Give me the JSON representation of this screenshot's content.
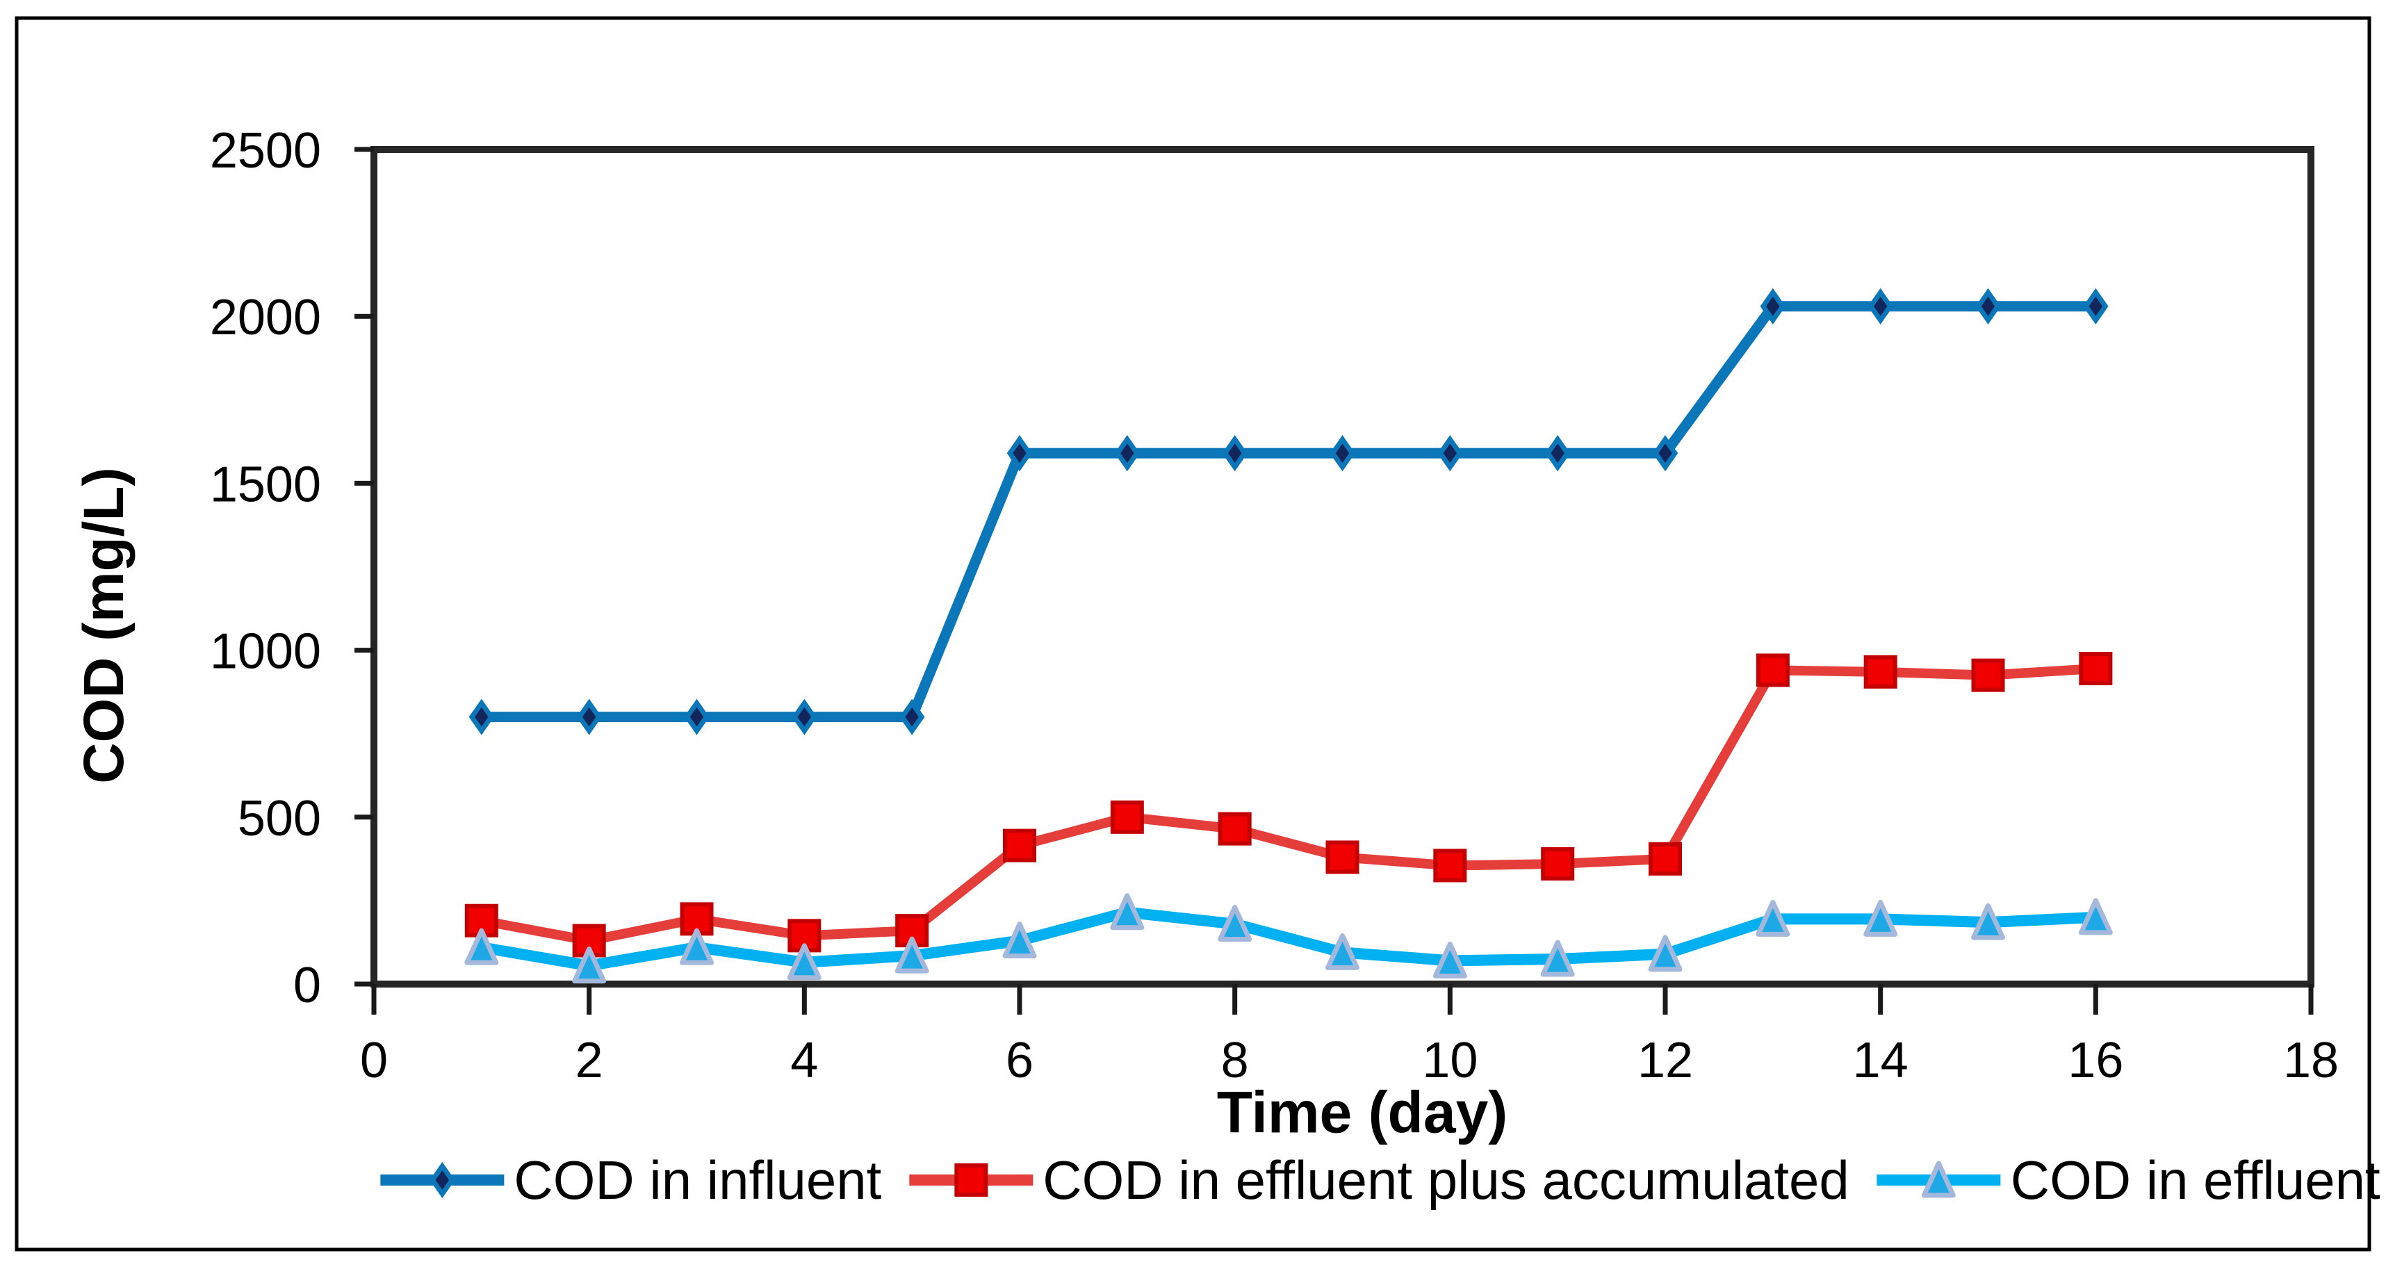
{
  "chart_data": {
    "type": "line",
    "title": "",
    "xlabel": "Time (day)",
    "ylabel": "COD (mg/L)",
    "xlim": [
      0,
      18
    ],
    "ylim": [
      0,
      2500
    ],
    "x_ticks": [
      0,
      2,
      4,
      6,
      8,
      10,
      12,
      14,
      16,
      18
    ],
    "y_ticks": [
      0,
      500,
      1000,
      1500,
      2000,
      2500
    ],
    "grid": false,
    "legend_position": "bottom-center",
    "x": [
      1,
      2,
      3,
      4,
      5,
      6,
      7,
      8,
      9,
      10,
      11,
      12,
      13,
      14,
      15,
      16
    ],
    "series": [
      {
        "name": "COD in influent",
        "marker": "diamond",
        "line_color": "#0b77b8",
        "marker_fill": "#13265c",
        "marker_stroke": "#0b77b8",
        "values": [
          800,
          800,
          800,
          800,
          800,
          1590,
          1590,
          1590,
          1590,
          1590,
          1590,
          1590,
          2030,
          2030,
          2030,
          2030
        ]
      },
      {
        "name": "COD in effluent plus accumulated",
        "marker": "square",
        "line_color": "#e43d3a",
        "marker_fill": "#f10000",
        "marker_stroke": "#c40000",
        "values": [
          190,
          130,
          195,
          145,
          160,
          415,
          500,
          465,
          380,
          355,
          360,
          375,
          940,
          935,
          925,
          945
        ]
      },
      {
        "name": "COD in effluent",
        "marker": "triangle",
        "line_color": "#00b0f0",
        "marker_fill": "#1ea9e6",
        "marker_stroke": "#a4b8dc",
        "values": [
          110,
          55,
          110,
          65,
          85,
          130,
          215,
          180,
          95,
          70,
          75,
          90,
          195,
          195,
          185,
          200
        ]
      }
    ],
    "frame_color": "#262626",
    "tick_color": "#1a1a1a",
    "text_color": "#000000"
  }
}
